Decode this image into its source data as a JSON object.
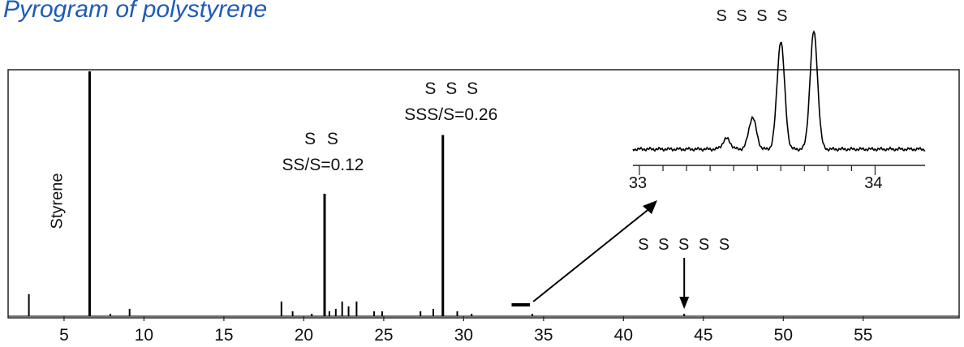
{
  "title": "Pyrogram of polystyrene",
  "chart_data": {
    "type": "line",
    "title": "Pyrogram of polystyrene",
    "xlabel": "",
    "ylabel": "",
    "xlim": [
      1.5,
      61
    ],
    "ylim": [
      0,
      100
    ],
    "x_ticks": [
      5,
      10,
      15,
      20,
      25,
      30,
      35,
      40,
      45,
      50,
      55
    ],
    "grid": false,
    "series": [
      {
        "peaks": [
          {
            "x": 2.8,
            "y": 9
          },
          {
            "x": 6.6,
            "y": 100
          },
          {
            "x": 7.9,
            "y": 1
          },
          {
            "x": 9.1,
            "y": 3
          },
          {
            "x": 18.6,
            "y": 6
          },
          {
            "x": 19.3,
            "y": 2
          },
          {
            "x": 20.5,
            "y": 1
          },
          {
            "x": 21.3,
            "y": 50
          },
          {
            "x": 21.6,
            "y": 2
          },
          {
            "x": 22.0,
            "y": 3
          },
          {
            "x": 22.4,
            "y": 6
          },
          {
            "x": 22.8,
            "y": 4
          },
          {
            "x": 23.3,
            "y": 6
          },
          {
            "x": 24.4,
            "y": 2
          },
          {
            "x": 24.9,
            "y": 2
          },
          {
            "x": 27.3,
            "y": 2
          },
          {
            "x": 28.1,
            "y": 3
          },
          {
            "x": 28.7,
            "y": 74
          },
          {
            "x": 29.6,
            "y": 2
          },
          {
            "x": 30.5,
            "y": 1
          },
          {
            "x": 34.3,
            "y": 1
          },
          {
            "x": 43.8,
            "y": 1
          }
        ]
      }
    ],
    "annotations": [
      {
        "text": "Styrene",
        "x": 6.6
      },
      {
        "text": "S S",
        "x": 21.3
      },
      {
        "text": "SS/S=0.12",
        "x": 21.3
      },
      {
        "text": "S S S",
        "x": 28.7
      },
      {
        "text": "SSS/S=0.26",
        "x": 28.7
      },
      {
        "text": "S S S S S",
        "x": 43.8
      }
    ],
    "inset": {
      "title": "S S S S",
      "xlim": [
        33,
        34.15
      ],
      "x_ticks": [
        33,
        34
      ],
      "ylim": [
        0,
        100
      ],
      "peaks": [
        {
          "x": 33.37,
          "y": 9
        },
        {
          "x": 33.48,
          "y": 27
        },
        {
          "x": 33.6,
          "y": 92
        },
        {
          "x": 33.74,
          "y": 100
        }
      ],
      "zoom_range": [
        33,
        34.15
      ]
    }
  }
}
